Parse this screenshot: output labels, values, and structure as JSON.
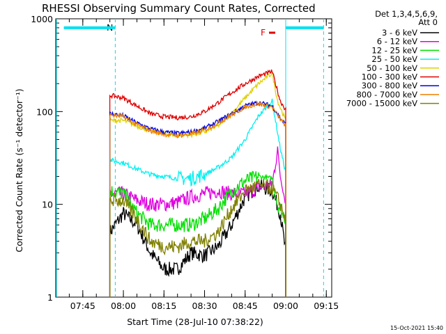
{
  "chart_data": {
    "type": "line",
    "title": "RHESSI Observing Summary Count Rates, Corrected",
    "xlabel": "Start Time (28-Jul-10 07:38:22)",
    "ylabel": "Corrected Count Rate (s⁻¹ detector⁻¹)",
    "yscale": "log",
    "ylim": [
      1,
      1000
    ],
    "xlim_minutes_after_0738": [
      -3,
      99
    ],
    "x_tick_labels": [
      "07:45",
      "08:00",
      "08:15",
      "08:30",
      "08:45",
      "09:00",
      "09:15"
    ],
    "y_tick_labels": [
      "1",
      "10",
      "100",
      "1000"
    ],
    "detector_header": [
      "Det 1,3,4,5,6,9,",
      "Att 0"
    ],
    "timestamp": "15-Oct-2021 15:40",
    "annotations": {
      "night_start_label": "N",
      "flare_label": "F",
      "flare_color": "#e00000",
      "eclipse_color": "#00e0f0",
      "eclipse_bars_y": 800,
      "eclipse_periods_utc": [
        [
          "07:38",
          "07:57"
        ],
        [
          "09:00",
          "09:14"
        ]
      ]
    },
    "series": [
      {
        "name": "3 - 6 keV",
        "color": "#000000",
        "times": [
          "07:55",
          "08:00",
          "08:05",
          "08:10",
          "08:15",
          "08:20",
          "08:25",
          "08:30",
          "08:35",
          "08:40",
          "08:45",
          "08:50",
          "08:55",
          "08:58",
          "09:00"
        ],
        "values": [
          5,
          8,
          6,
          3,
          2,
          2,
          3,
          2.8,
          3.5,
          6,
          12,
          16,
          14,
          8,
          3
        ]
      },
      {
        "name": "6 - 12 keV",
        "color": "#e000e0",
        "times": [
          "07:55",
          "08:00",
          "08:05",
          "08:10",
          "08:15",
          "08:20",
          "08:25",
          "08:30",
          "08:35",
          "08:40",
          "08:45",
          "08:50",
          "08:55",
          "08:57",
          "08:58",
          "09:00"
        ],
        "values": [
          13,
          13,
          11,
          10,
          10,
          10.5,
          12,
          13,
          14,
          13,
          13,
          15,
          16,
          40,
          20,
          10
        ]
      },
      {
        "name": "12 - 25 keV",
        "color": "#00e000",
        "times": [
          "07:55",
          "08:00",
          "08:05",
          "08:10",
          "08:15",
          "08:20",
          "08:25",
          "08:30",
          "08:35",
          "08:40",
          "08:45",
          "08:50",
          "08:55",
          "08:57",
          "08:58",
          "09:00"
        ],
        "values": [
          14,
          13,
          8,
          6,
          6,
          6,
          6,
          7,
          9,
          14,
          18,
          20,
          19,
          10,
          9,
          7
        ]
      },
      {
        "name": "25 - 50 keV",
        "color": "#00f0f0",
        "times": [
          "07:55",
          "08:00",
          "08:05",
          "08:10",
          "08:15",
          "08:20",
          "08:25",
          "08:30",
          "08:35",
          "08:40",
          "08:45",
          "08:50",
          "08:55",
          "08:58",
          "09:00"
        ],
        "values": [
          30,
          28,
          24,
          21,
          20,
          19,
          19,
          21,
          25,
          32,
          50,
          90,
          130,
          40,
          22
        ]
      },
      {
        "name": "50 - 100 keV",
        "color": "#e0d000",
        "times": [
          "07:55",
          "08:00",
          "08:05",
          "08:10",
          "08:15",
          "08:20",
          "08:25",
          "08:30",
          "08:35",
          "08:40",
          "08:45",
          "08:50",
          "08:55",
          "08:57",
          "09:00"
        ],
        "values": [
          80,
          80,
          70,
          62,
          58,
          56,
          56,
          60,
          70,
          95,
          140,
          200,
          260,
          130,
          80
        ]
      },
      {
        "name": "100 - 300 keV",
        "color": "#e00000",
        "times": [
          "07:55",
          "08:00",
          "08:05",
          "08:10",
          "08:15",
          "08:20",
          "08:25",
          "08:30",
          "08:35",
          "08:40",
          "08:45",
          "08:50",
          "08:55",
          "08:58",
          "09:00"
        ],
        "values": [
          150,
          140,
          115,
          95,
          88,
          86,
          88,
          100,
          125,
          160,
          200,
          240,
          270,
          130,
          105
        ]
      },
      {
        "name": "300 - 800 keV",
        "color": "#0000e0",
        "times": [
          "07:55",
          "08:00",
          "08:05",
          "08:10",
          "08:15",
          "08:20",
          "08:25",
          "08:30",
          "08:35",
          "08:40",
          "08:45",
          "08:50",
          "08:55",
          "08:58",
          "09:00"
        ],
        "values": [
          95,
          90,
          75,
          65,
          60,
          58,
          60,
          66,
          78,
          95,
          115,
          125,
          115,
          85,
          72
        ]
      },
      {
        "name": "800 - 7000 keV",
        "color": "#f08000",
        "times": [
          "07:55",
          "08:00",
          "08:05",
          "08:10",
          "08:15",
          "08:20",
          "08:25",
          "08:30",
          "08:35",
          "08:40",
          "08:45",
          "08:50",
          "08:55",
          "08:58",
          "09:00"
        ],
        "values": [
          92,
          88,
          72,
          62,
          57,
          55,
          57,
          63,
          75,
          92,
          112,
          122,
          112,
          83,
          70
        ]
      },
      {
        "name": "7000 - 15000 keV",
        "color": "#808000",
        "times": [
          "07:55",
          "08:00",
          "08:05",
          "08:10",
          "08:15",
          "08:20",
          "08:25",
          "08:30",
          "08:35",
          "08:40",
          "08:45",
          "08:50",
          "08:55",
          "08:58",
          "09:00"
        ],
        "values": [
          11,
          11,
          7,
          4,
          3.5,
          3.5,
          4,
          4,
          5,
          9,
          14,
          16,
          15,
          10,
          7
        ]
      }
    ]
  }
}
